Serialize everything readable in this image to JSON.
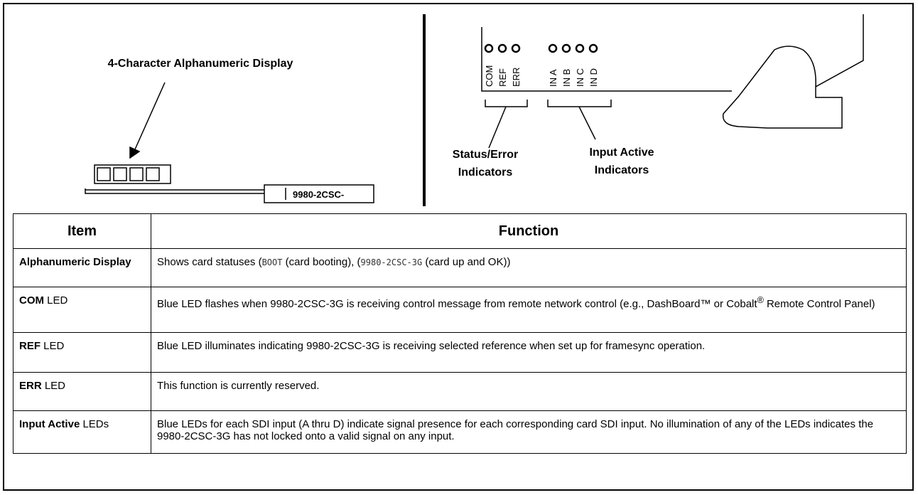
{
  "diagram": {
    "display_label": "4-Character Alphanumeric Display",
    "part_label": "9980-2CSC-",
    "status_leds": [
      "COM",
      "REF",
      "ERR"
    ],
    "input_leds": [
      "IN A",
      "IN B",
      "IN C",
      "IN D"
    ],
    "status_label": [
      "Status/Error",
      "Indicators"
    ],
    "input_label": [
      "Input Active",
      "Indicators"
    ]
  },
  "table": {
    "header": [
      "Item",
      "Function"
    ],
    "rows": [
      {
        "item": [
          {
            "text": "Alphanumeric Display",
            "style": "bold"
          }
        ],
        "function": [
          {
            "text": "Shows card statuses ("
          },
          {
            "text": "BOOT",
            "style": "mono"
          },
          {
            "text": " (card booting), ("
          },
          {
            "text": "9980-2CSC-3G",
            "style": "mono"
          },
          {
            "text": " (card up and OK))"
          }
        ]
      },
      {
        "item": [
          {
            "text": "COM",
            "style": "bold"
          },
          {
            "text": " LED"
          }
        ],
        "function": [
          {
            "text": "Blue LED flashes when 9980-2CSC-3G is receiving control message from remote network control (e.g., DashBoard™ or Cobalt"
          },
          {
            "text": "®",
            "style": "sup"
          },
          {
            "text": " Remote Control Panel)"
          }
        ]
      },
      {
        "item": [
          {
            "text": "REF",
            "style": "bold"
          },
          {
            "text": " LED"
          }
        ],
        "function": [
          {
            "text": "Blue LED illuminates indicating 9980-2CSC-3G is receiving selected reference when set up for framesync operation."
          }
        ]
      },
      {
        "item": [
          {
            "text": "ERR",
            "style": "bold"
          },
          {
            "text": " LED"
          }
        ],
        "function": [
          {
            "text": "This function is currently reserved."
          }
        ]
      },
      {
        "item": [
          {
            "text": "Input Active",
            "style": "bold"
          },
          {
            "text": " LEDs"
          }
        ],
        "function": [
          {
            "text": "Blue LEDs for each SDI input (A thru D) indicate signal presence for each corresponding card SDI input. No illumination of any of the LEDs indicates the 9980-2CSC-3G has not locked onto a valid signal on any input."
          }
        ]
      }
    ]
  }
}
